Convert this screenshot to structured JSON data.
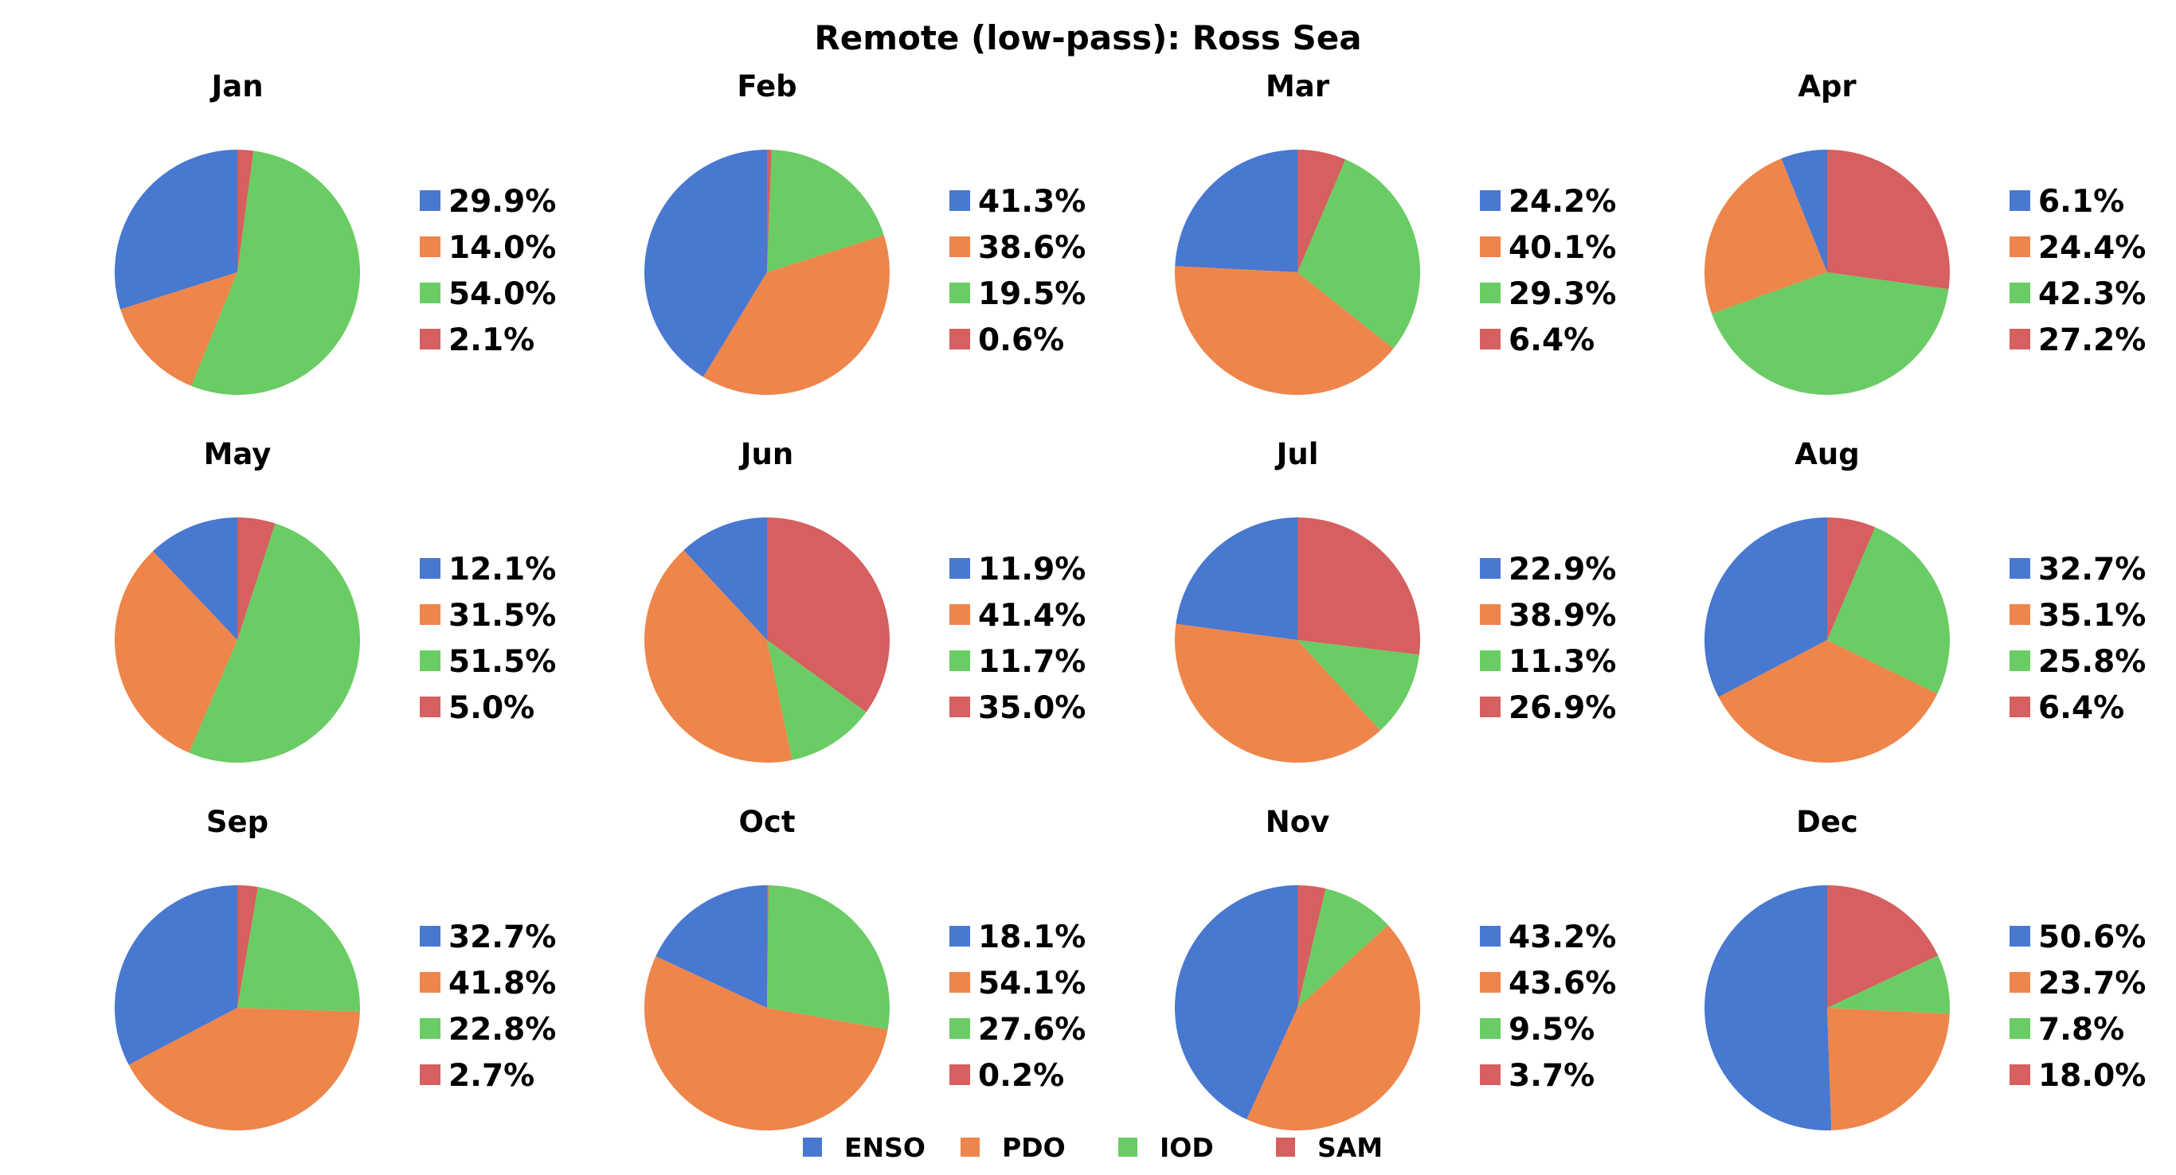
{
  "chart_data": {
    "type": "pie",
    "title": "Remote (low-pass): Ross Sea",
    "series_names": [
      "ENSO",
      "PDO",
      "IOD",
      "SAM"
    ],
    "colors": [
      "#4878d0",
      "#ee854a",
      "#6acc64",
      "#d65f5f"
    ],
    "legend_placement": "bottom-center",
    "label_suffix": "%",
    "panels": [
      {
        "month": "Jan",
        "values": [
          29.9,
          14.0,
          54.0,
          2.1
        ],
        "labels": [
          "29.9%",
          "14.0%",
          "54.0%",
          "2.1%"
        ]
      },
      {
        "month": "Feb",
        "values": [
          41.3,
          38.6,
          19.5,
          0.6
        ],
        "labels": [
          "41.3%",
          "38.6%",
          "19.5%",
          "0.6%"
        ]
      },
      {
        "month": "Mar",
        "values": [
          24.2,
          40.1,
          29.3,
          6.4
        ],
        "labels": [
          "24.2%",
          "40.1%",
          "29.3%",
          "6.4%"
        ]
      },
      {
        "month": "Apr",
        "values": [
          6.1,
          24.4,
          42.3,
          27.2
        ],
        "labels": [
          "6.1%",
          "24.4%",
          "42.3%",
          "27.2%"
        ]
      },
      {
        "month": "May",
        "values": [
          12.1,
          31.5,
          51.5,
          5.0
        ],
        "labels": [
          "12.1%",
          "31.5%",
          "51.5%",
          "5.0%"
        ]
      },
      {
        "month": "Jun",
        "values": [
          11.9,
          41.4,
          11.7,
          35.0
        ],
        "labels": [
          "11.9%",
          "41.4%",
          "11.7%",
          "35.0%"
        ]
      },
      {
        "month": "Jul",
        "values": [
          22.9,
          38.9,
          11.3,
          26.9
        ],
        "labels": [
          "22.9%",
          "38.9%",
          "11.3%",
          "26.9%"
        ]
      },
      {
        "month": "Aug",
        "values": [
          32.7,
          35.1,
          25.8,
          6.4
        ],
        "labels": [
          "32.7%",
          "35.1%",
          "25.8%",
          "6.4%"
        ]
      },
      {
        "month": "Sep",
        "values": [
          32.7,
          41.8,
          22.8,
          2.7
        ],
        "labels": [
          "32.7%",
          "41.8%",
          "22.8%",
          "2.7%"
        ]
      },
      {
        "month": "Oct",
        "values": [
          18.1,
          54.1,
          27.6,
          0.2
        ],
        "labels": [
          "18.1%",
          "54.1%",
          "27.6%",
          "0.2%"
        ]
      },
      {
        "month": "Nov",
        "values": [
          43.2,
          43.6,
          9.5,
          3.7
        ],
        "labels": [
          "43.2%",
          "43.6%",
          "9.5%",
          "3.7%"
        ]
      },
      {
        "month": "Dec",
        "values": [
          50.6,
          23.7,
          7.8,
          18.0
        ],
        "labels": [
          "50.6%",
          "23.7%",
          "7.8%",
          "18.0%"
        ]
      }
    ]
  }
}
